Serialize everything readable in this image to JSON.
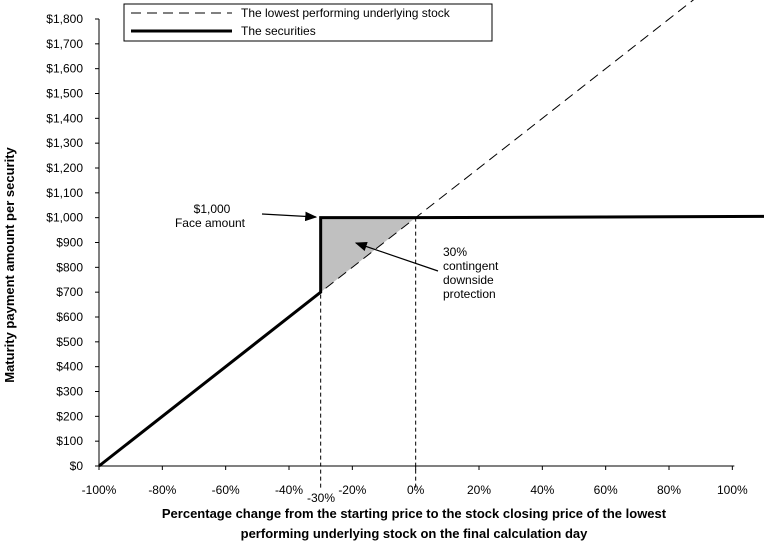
{
  "chart_data": {
    "type": "line",
    "xlabel_lines": [
      "Percentage change from the starting price to the stock closing price of the lowest",
      "performing underlying stock on the final calculation day"
    ],
    "ylabel": "Maturity payment amount per security",
    "xlim": [
      -100,
      110
    ],
    "ylim": [
      0,
      1800
    ],
    "x_ticks": [
      -100,
      -80,
      -60,
      -40,
      -20,
      0,
      20,
      40,
      60,
      80,
      100
    ],
    "x_tick_labels": [
      "-100%",
      "-80%",
      "-60%",
      "-40%",
      "-20%",
      "0%",
      "20%",
      "40%",
      "60%",
      "80%",
      "100%"
    ],
    "y_ticks": [
      0,
      100,
      200,
      300,
      400,
      500,
      600,
      700,
      800,
      900,
      1000,
      1100,
      1200,
      1300,
      1400,
      1500,
      1600,
      1700,
      1800
    ],
    "y_tick_labels": [
      "$0",
      "$100",
      "$200",
      "$300",
      "$400",
      "$500",
      "$600",
      "$700",
      "$800",
      "$900",
      "$1,000",
      "$1,100",
      "$1,200",
      "$1,300",
      "$1,400",
      "$1,500",
      "$1,600",
      "$1,700",
      "$1,800"
    ],
    "series": [
      {
        "name": "The lowest performing underlying stock",
        "style": "dashed",
        "x": [
          -100,
          88
        ],
        "y": [
          0,
          1880
        ]
      },
      {
        "name": "The securities",
        "style": "solid-bold",
        "x": [
          -100,
          -30,
          -30,
          0,
          110
        ],
        "y": [
          0,
          700,
          1000,
          1000,
          1005
        ]
      }
    ],
    "shaded_region": {
      "x": [
        -30,
        0,
        -30
      ],
      "y": [
        1000,
        1000,
        700
      ],
      "color": "#c0c0c0"
    },
    "reference_lines_x": [
      -30,
      0
    ],
    "minus30_label": "-30%",
    "annotations": [
      {
        "lines": [
          "$1,000",
          "Face amount"
        ],
        "points_to": {
          "x": -30,
          "y": 1000
        }
      },
      {
        "lines": [
          "30%",
          "contingent",
          "downside",
          "protection"
        ],
        "points_to": {
          "x": -20,
          "y": 900
        }
      }
    ],
    "legend_position": "top-left"
  }
}
